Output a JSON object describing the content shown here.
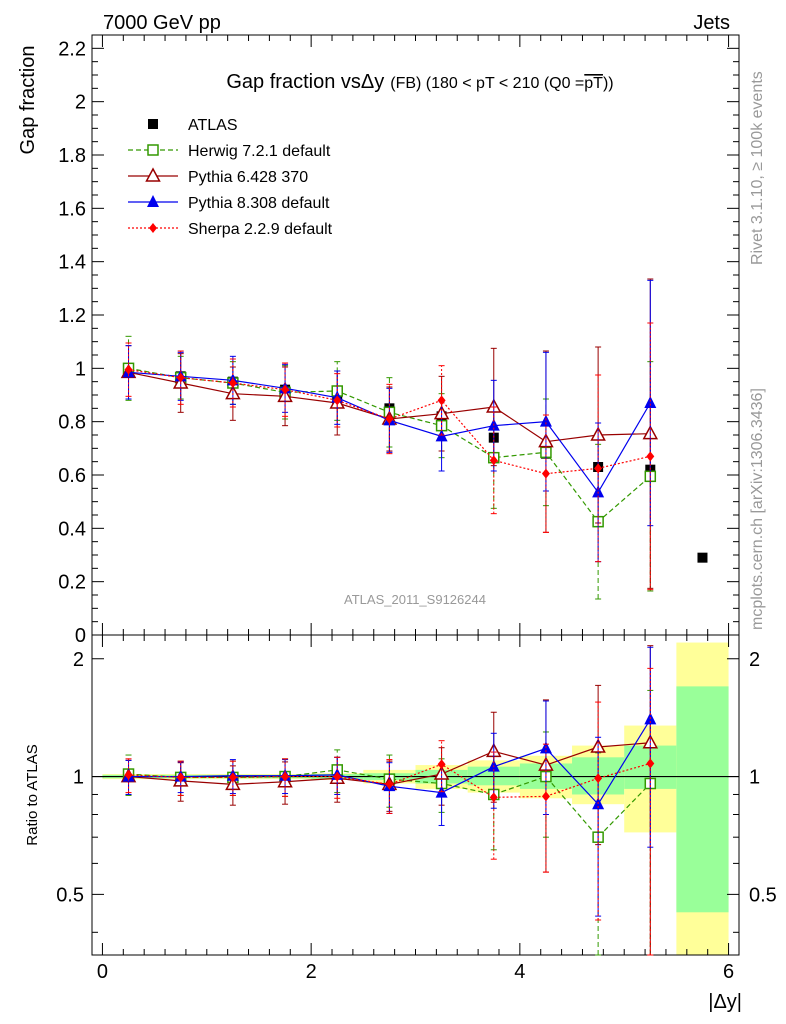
{
  "header": {
    "left": "7000 GeV pp",
    "right": "Jets"
  },
  "side_labels": {
    "rivet": "Rivet 3.1.10, ≥ 100k events",
    "mcplots": "mcplots.cern.ch [arXiv:1306.3436]"
  },
  "analysis_id": "ATLAS_2011_S9126244",
  "title": {
    "main": "Gap fraction vsΔy",
    "detail": "(FB) (180 < pT < 210 (Q0 =",
    "overline": "pT",
    "close": "))"
  },
  "colors": {
    "herwig": "#339900",
    "pythia6": "#990000",
    "pythia8": "#0000ee",
    "sherpa": "#ff0000",
    "band_inner": "#99ff99",
    "band_outer": "#ffff99"
  },
  "chart_data": [
    {
      "type": "scatter",
      "ylabel": "Gap fraction",
      "ylim": [
        0,
        2.25
      ],
      "xlim": [
        -0.1,
        6.1
      ],
      "yticks": [
        "0",
        "0.2",
        "0.4",
        "0.6",
        "0.8",
        "1",
        "1.2",
        "1.4",
        "1.6",
        "1.8",
        "2",
        "2.2"
      ],
      "legend_position": "top-left",
      "x": [
        0.25,
        0.75,
        1.25,
        1.75,
        2.25,
        2.75,
        3.25,
        3.75,
        4.25,
        4.75,
        5.25,
        5.75
      ],
      "series": [
        {
          "name": "ATLAS",
          "key": "atlas",
          "marker": "square-filled",
          "values": [
            0.985,
            0.97,
            0.95,
            0.92,
            0.88,
            0.85,
            0.82,
            0.74,
            0.68,
            0.63,
            0.62,
            0.29
          ]
        },
        {
          "name": "Herwig 7.2.1 default",
          "key": "herwig",
          "marker": "square-open",
          "line": "dashed",
          "values": [
            1.0,
            0.965,
            0.945,
            0.91,
            0.915,
            0.835,
            0.785,
            0.665,
            0.685,
            0.425,
            0.595
          ],
          "err": [
            0.12,
            0.08,
            0.08,
            0.1,
            0.11,
            0.13,
            0.12,
            0.19,
            0.2,
            0.29,
            0.43
          ]
        },
        {
          "name": "Pythia 6.428 370",
          "key": "pythia6",
          "marker": "triangle-open",
          "line": "solid",
          "values": [
            0.985,
            0.945,
            0.905,
            0.895,
            0.87,
            0.81,
            0.83,
            0.855,
            0.725,
            0.75,
            0.755
          ],
          "err": [
            0.1,
            0.11,
            0.1,
            0.11,
            0.12,
            0.12,
            0.14,
            0.22,
            0.34,
            0.33,
            0.58
          ]
        },
        {
          "name": "Pythia 8.308 default",
          "key": "pythia8",
          "marker": "triangle-filled",
          "line": "solid",
          "values": [
            0.985,
            0.97,
            0.955,
            0.925,
            0.89,
            0.805,
            0.745,
            0.785,
            0.8,
            0.535,
            0.87
          ],
          "err": [
            0.1,
            0.09,
            0.09,
            0.09,
            0.1,
            0.12,
            0.13,
            0.17,
            0.26,
            0.26,
            0.46
          ]
        },
        {
          "name": "Sherpa 2.2.9 default",
          "key": "sherpa",
          "marker": "diamond-filled",
          "line": "dotted",
          "values": [
            0.995,
            0.965,
            0.945,
            0.92,
            0.88,
            0.81,
            0.88,
            0.655,
            0.605,
            0.625,
            0.67
          ],
          "err": [
            0.1,
            0.1,
            0.09,
            0.1,
            0.1,
            0.13,
            0.13,
            0.2,
            0.22,
            0.35,
            0.5
          ]
        }
      ]
    },
    {
      "type": "scatter",
      "ylabel": "Ratio to ATLAS",
      "ylim": [
        0.35,
        2.3
      ],
      "ylog": true,
      "yticks": [
        "0.5",
        "1",
        "2"
      ],
      "xticks": [
        "0",
        "2",
        "4",
        "6"
      ],
      "xlabel": "|Δy|",
      "x": [
        0.25,
        0.75,
        1.25,
        1.75,
        2.25,
        2.75,
        3.25,
        3.75,
        4.25,
        4.75,
        5.25
      ],
      "bins": [
        [
          0,
          0.5
        ],
        [
          0.5,
          1
        ],
        [
          1,
          1.5
        ],
        [
          1.5,
          2
        ],
        [
          2,
          2.5
        ],
        [
          2.5,
          3
        ],
        [
          3,
          3.5
        ],
        [
          3.5,
          4
        ],
        [
          4,
          4.5
        ],
        [
          4.5,
          5
        ],
        [
          5,
          5.5
        ],
        [
          5.5,
          6
        ]
      ],
      "band_inner": [
        [
          0.99,
          1.01
        ],
        [
          0.99,
          1.01
        ],
        [
          0.99,
          1.01
        ],
        [
          0.99,
          1.01
        ],
        [
          0.985,
          1.015
        ],
        [
          0.98,
          1.02
        ],
        [
          0.96,
          1.04
        ],
        [
          0.95,
          1.06
        ],
        [
          0.93,
          1.08
        ],
        [
          0.9,
          1.12
        ],
        [
          0.93,
          1.2
        ],
        [
          0.45,
          1.7
        ]
      ],
      "band_outer": [
        [
          0.985,
          1.015
        ],
        [
          0.985,
          1.015
        ],
        [
          0.985,
          1.015
        ],
        [
          0.985,
          1.015
        ],
        [
          0.98,
          1.02
        ],
        [
          0.96,
          1.04
        ],
        [
          0.93,
          1.07
        ],
        [
          0.91,
          1.1
        ],
        [
          0.88,
          1.13
        ],
        [
          0.85,
          1.2
        ],
        [
          0.72,
          1.35
        ],
        [
          0.3,
          2.2
        ]
      ],
      "series": [
        {
          "key": "herwig",
          "values": [
            1.015,
            0.995,
            0.995,
            1.0,
            1.04,
            0.985,
            0.96,
            0.9,
            1.0,
            0.7,
            0.96
          ],
          "err": [
            0.12,
            0.1,
            0.1,
            0.11,
            0.13,
            0.15,
            0.15,
            0.25,
            0.3,
            0.45,
            0.7
          ]
        },
        {
          "key": "pythia6",
          "values": [
            1.0,
            0.975,
            0.955,
            0.97,
            0.99,
            0.955,
            1.015,
            1.16,
            1.07,
            1.19,
            1.22
          ],
          "err": [
            0.1,
            0.11,
            0.11,
            0.12,
            0.13,
            0.14,
            0.17,
            0.3,
            0.5,
            0.52,
            0.94
          ]
        },
        {
          "key": "pythia8",
          "values": [
            1.0,
            1.0,
            1.005,
            1.005,
            1.01,
            0.945,
            0.91,
            1.06,
            1.18,
            0.85,
            1.4
          ],
          "err": [
            0.1,
            0.09,
            0.1,
            0.1,
            0.11,
            0.14,
            0.16,
            0.23,
            0.38,
            0.41,
            0.74
          ]
        },
        {
          "key": "sherpa",
          "values": [
            1.01,
            0.995,
            0.995,
            1.0,
            1.0,
            0.955,
            1.075,
            0.885,
            0.89,
            0.99,
            1.08
          ],
          "err": [
            0.1,
            0.1,
            0.1,
            0.11,
            0.12,
            0.15,
            0.16,
            0.27,
            0.32,
            0.56,
            0.81
          ]
        }
      ]
    }
  ]
}
